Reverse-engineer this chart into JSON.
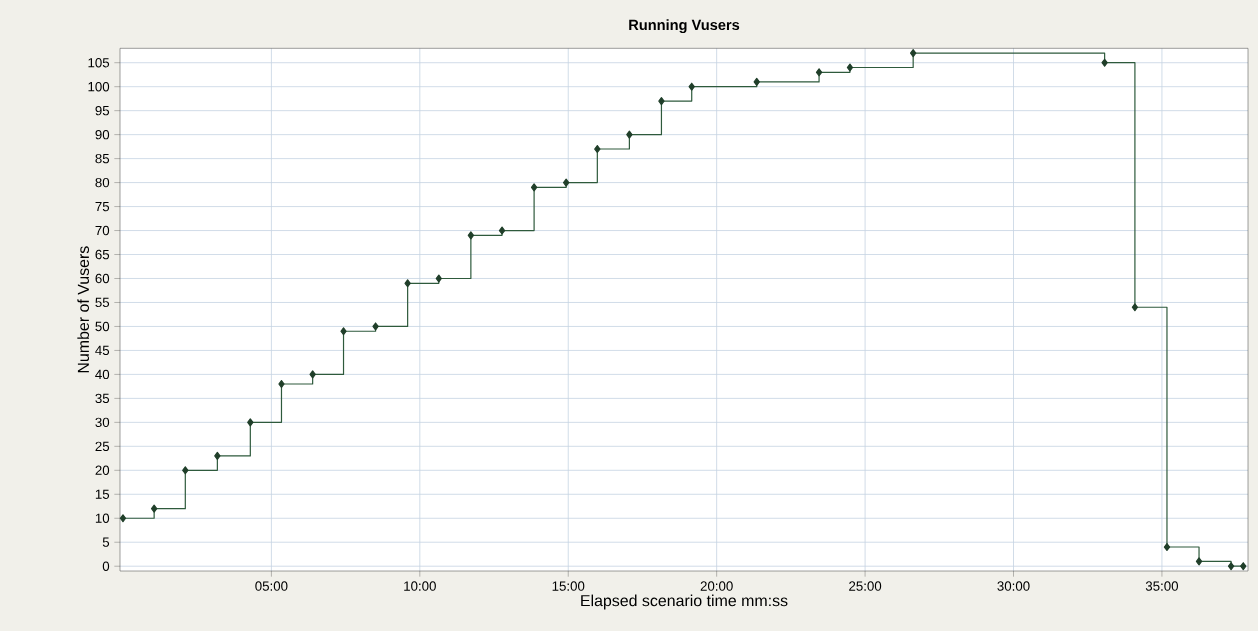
{
  "chart_data": {
    "type": "step",
    "title": "Running Vusers",
    "xlabel": "Elapsed scenario time mm:ss",
    "ylabel": "Number of Vusers",
    "x": [
      0.0,
      1.05,
      2.1,
      3.18,
      4.29,
      5.34,
      6.39,
      7.43,
      8.51,
      9.59,
      10.64,
      11.72,
      12.77,
      13.85,
      14.93,
      15.98,
      17.06,
      18.14,
      19.16,
      21.35,
      23.45,
      24.49,
      26.62,
      33.07,
      34.09,
      35.17,
      36.25,
      37.33,
      37.74
    ],
    "series": [
      {
        "color": "#2e5a3c",
        "values": [
          10,
          12,
          20,
          23,
          30,
          38,
          40,
          49,
          50,
          59,
          60,
          69,
          70,
          79,
          80,
          87,
          90,
          97,
          100,
          101,
          103,
          104,
          107,
          105,
          54,
          4,
          1,
          0,
          0
        ]
      }
    ],
    "xlim": [
      -0.1,
      37.9
    ],
    "ylim": [
      -1,
      108
    ],
    "xticks": [
      {
        "value": 5,
        "label": "05:00"
      },
      {
        "value": 10,
        "label": "10:00"
      },
      {
        "value": 15,
        "label": "15:00"
      },
      {
        "value": 20,
        "label": "20:00"
      },
      {
        "value": 25,
        "label": "25:00"
      },
      {
        "value": 30,
        "label": "30:00"
      },
      {
        "value": 35,
        "label": "35:00"
      }
    ],
    "yticks": [
      0,
      5,
      10,
      15,
      20,
      25,
      30,
      35,
      40,
      45,
      50,
      55,
      60,
      65,
      70,
      75,
      80,
      85,
      90,
      95,
      100,
      105
    ],
    "grid": true,
    "marker": "diamond",
    "line_style": "solid"
  }
}
